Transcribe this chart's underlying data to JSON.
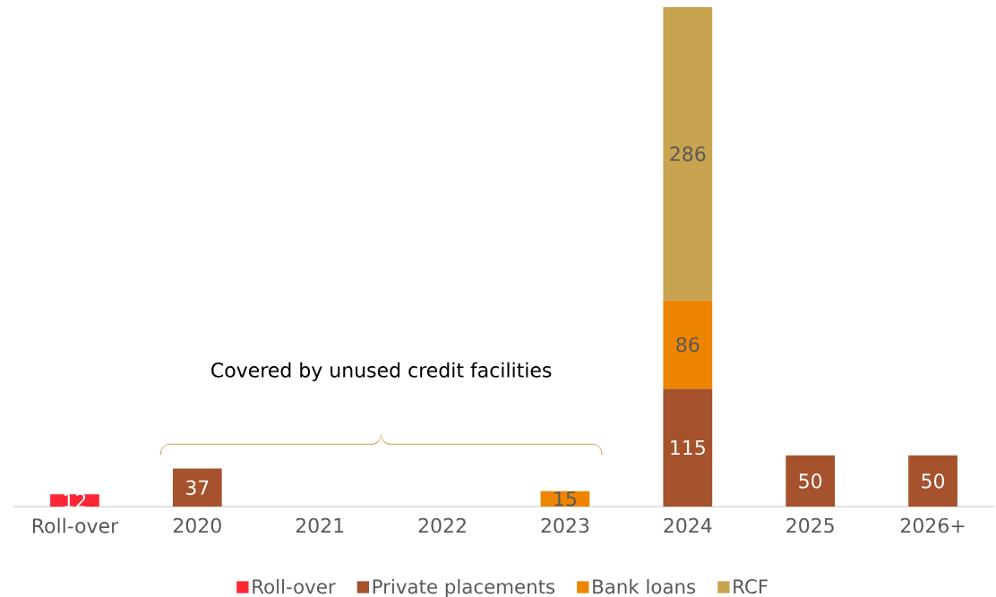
{
  "chart_data": {
    "type": "bar",
    "stacked": true,
    "data_labels": true,
    "legend": "bottom",
    "grid": false,
    "categories": [
      "Roll-over",
      "2020",
      "2021",
      "2022",
      "2023",
      "2024",
      "2025",
      "2026+"
    ],
    "series": [
      {
        "name": "Roll-over",
        "color": "#ff2635",
        "values": [
          12,
          null,
          null,
          null,
          null,
          null,
          null,
          null
        ]
      },
      {
        "name": "Private placements",
        "color": "#a5522d",
        "values": [
          null,
          37,
          null,
          null,
          null,
          115,
          50,
          50
        ]
      },
      {
        "name": "Bank loans",
        "color": "#ee8500",
        "values": [
          null,
          null,
          null,
          null,
          15,
          86,
          null,
          null
        ]
      },
      {
        "name": "RCF",
        "color": "#c8a450",
        "values": [
          null,
          null,
          null,
          null,
          null,
          286,
          null,
          null
        ]
      }
    ],
    "annotations": [
      "Covered by unused credit facilities"
    ]
  }
}
